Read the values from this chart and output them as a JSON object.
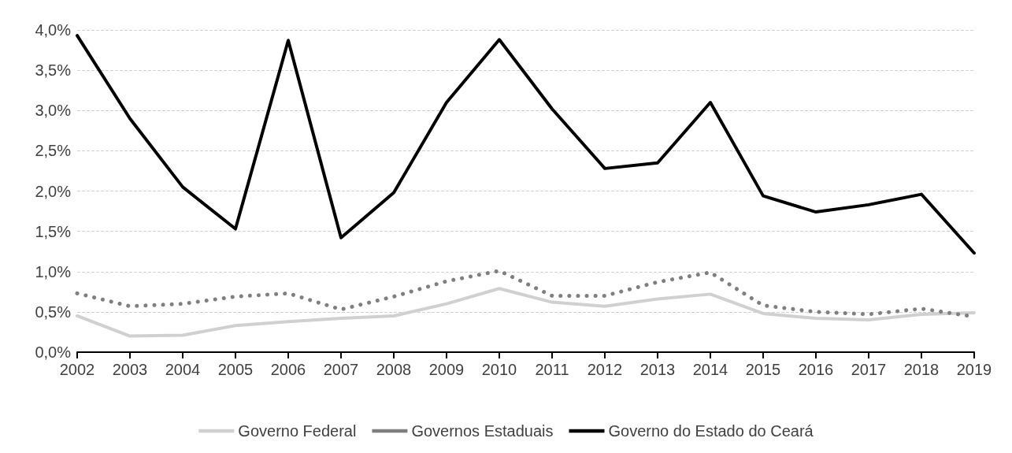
{
  "chart_data": {
    "type": "line",
    "categories": [
      "2002",
      "2003",
      "2004",
      "2005",
      "2006",
      "2007",
      "2008",
      "2009",
      "2010",
      "2011",
      "2012",
      "2013",
      "2014",
      "2015",
      "2016",
      "2017",
      "2018",
      "2019"
    ],
    "series": [
      {
        "name": "Governo Federal",
        "color": "#d0d0d0",
        "line_style": "solid",
        "values": [
          0.45,
          0.2,
          0.21,
          0.33,
          0.38,
          0.42,
          0.45,
          0.6,
          0.79,
          0.62,
          0.57,
          0.66,
          0.72,
          0.48,
          0.42,
          0.4,
          0.47,
          0.49
        ]
      },
      {
        "name": "Governos Estaduais",
        "color": "#7f7f7f",
        "line_style": "dotted",
        "values": [
          0.73,
          0.57,
          0.6,
          0.69,
          0.73,
          0.53,
          0.69,
          0.88,
          1.01,
          0.7,
          0.7,
          0.87,
          0.99,
          0.58,
          0.5,
          0.47,
          0.54,
          0.44
        ]
      },
      {
        "name": "Governo do Estado do Ceará",
        "color": "#000000",
        "line_style": "solid",
        "values": [
          3.93,
          2.9,
          2.05,
          1.53,
          3.87,
          1.42,
          1.98,
          3.1,
          3.88,
          3.02,
          2.28,
          2.35,
          3.1,
          1.94,
          1.74,
          1.83,
          1.96,
          1.23
        ]
      }
    ],
    "ylim": [
      0,
      4
    ],
    "yticks": [
      {
        "value": 0,
        "label": "0,0%"
      },
      {
        "value": 0.5,
        "label": "0,5%"
      },
      {
        "value": 1,
        "label": "1,0%"
      },
      {
        "value": 1.5,
        "label": "1,5%"
      },
      {
        "value": 2,
        "label": "2,0%"
      },
      {
        "value": 2.5,
        "label": "2,5%"
      },
      {
        "value": 3,
        "label": "3,0%"
      },
      {
        "value": 3.5,
        "label": "3,5%"
      },
      {
        "value": 4,
        "label": "4,0%"
      }
    ],
    "grid": "y",
    "legend": "bottom",
    "marker": "none"
  }
}
